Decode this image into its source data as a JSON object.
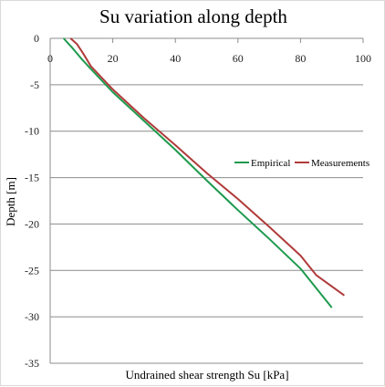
{
  "chart_data": {
    "type": "line",
    "title": "Su variation along depth",
    "xlabel": "Undrained shear strength Su [kPa]",
    "ylabel": "Depth [m]",
    "xlim": [
      0,
      100
    ],
    "ylim": [
      -35,
      0
    ],
    "x_ticks": [
      "0",
      "20",
      "40",
      "60",
      "80",
      "100"
    ],
    "y_ticks": [
      "0",
      "-5",
      "-10",
      "-15",
      "-20",
      "-25",
      "-30",
      "-35"
    ],
    "x_tick_values": [
      0,
      20,
      40,
      60,
      80,
      100
    ],
    "y_tick_values": [
      0,
      -5,
      -10,
      -15,
      -20,
      -25,
      -30,
      -35
    ],
    "grid": "horizontal",
    "x_axis_position": "top",
    "legend_position": "right",
    "series": [
      {
        "name": "Empirical",
        "color": "#1e9a4e",
        "points": [
          [
            4.3,
            0
          ],
          [
            7,
            -1
          ],
          [
            10,
            -2.2
          ],
          [
            13,
            -3.3
          ],
          [
            20,
            -5.8
          ],
          [
            30,
            -8.9
          ],
          [
            40,
            -12
          ],
          [
            50,
            -15.3
          ],
          [
            60,
            -18.5
          ],
          [
            70,
            -21.6
          ],
          [
            80,
            -24.8
          ],
          [
            90,
            -29
          ]
        ]
      },
      {
        "name": "Measurements",
        "color": "#b03a3a",
        "points": [
          [
            6.5,
            0
          ],
          [
            8.5,
            -0.6
          ],
          [
            10.5,
            -1.6
          ],
          [
            13,
            -3
          ],
          [
            20,
            -5.5
          ],
          [
            30,
            -8.6
          ],
          [
            40,
            -11.5
          ],
          [
            50,
            -14.5
          ],
          [
            60,
            -17.3
          ],
          [
            70,
            -20.3
          ],
          [
            80,
            -23.4
          ],
          [
            85,
            -25.5
          ],
          [
            94,
            -27.7
          ]
        ]
      }
    ]
  }
}
